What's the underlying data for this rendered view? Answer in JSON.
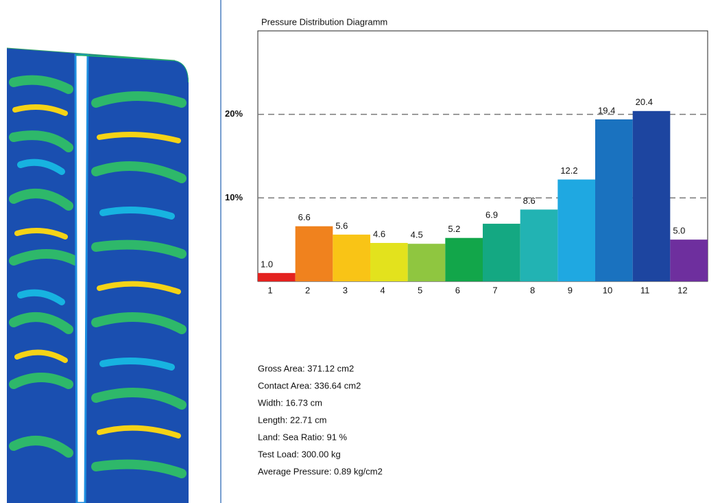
{
  "chart_data": {
    "type": "bar",
    "title": "Pressure Distribution Diagramm",
    "categories": [
      "1",
      "2",
      "3",
      "4",
      "5",
      "6",
      "7",
      "8",
      "9",
      "10",
      "11",
      "12"
    ],
    "values": [
      1.0,
      6.6,
      5.6,
      4.6,
      4.5,
      5.2,
      6.9,
      8.6,
      12.2,
      19.4,
      20.4,
      5.0
    ],
    "value_labels": [
      "1.0",
      "6.6",
      "5.6",
      "4.6",
      "4.5",
      "5.2",
      "6.9",
      "8.6",
      "12.2",
      "19.4",
      "20.4",
      "5.0"
    ],
    "colors": [
      "#e4221f",
      "#f0821e",
      "#f9c416",
      "#e3e21d",
      "#8fc640",
      "#12a64a",
      "#14a882",
      "#22b3b3",
      "#1fa8e1",
      "#1a72bf",
      "#1d45a0",
      "#6e2f9e"
    ],
    "ylim": [
      0,
      30
    ],
    "yticks": [
      {
        "value": 10,
        "label": "10%"
      },
      {
        "value": 20,
        "label": "20%"
      }
    ],
    "grid": true
  },
  "stats": [
    "Gross Area: 371.12 cm2",
    "Contact Area: 336.64 cm2",
    "Width: 16.73 cm",
    "Length: 22.71 cm",
    "Land: Sea Ratio: 91 %",
    "Test Load: 300.00 kg",
    "Average Pressure: 0.89 kg/cm2"
  ]
}
